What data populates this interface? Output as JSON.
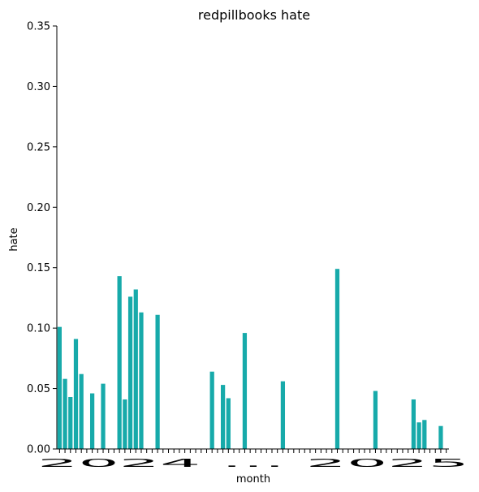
{
  "chart_data": {
    "type": "bar",
    "title": "redpillbooks hate",
    "xlabel": "month",
    "ylabel": "hate",
    "ylim": [
      0,
      0.35
    ],
    "yticks": [
      "0.00",
      "0.05",
      "0.10",
      "0.15",
      "0.20",
      "0.25",
      "0.30",
      "0.35"
    ],
    "x_tick_label_overlap": "2024 … 2025",
    "bar_color": "#17aaaa",
    "grid": false,
    "values": [
      0.101,
      0.058,
      0.043,
      0.091,
      0.062,
      0,
      0.046,
      0,
      0.054,
      0,
      0,
      0.143,
      0.041,
      0.126,
      0.132,
      0.113,
      0,
      0,
      0.111,
      0,
      0,
      0,
      0,
      0,
      0,
      0,
      0,
      0,
      0.064,
      0,
      0.053,
      0.042,
      0,
      0,
      0.096,
      0,
      0,
      0,
      0,
      0,
      0,
      0.056,
      0,
      0,
      0,
      0,
      0,
      0,
      0,
      0,
      0,
      0.149,
      0,
      0,
      0,
      0,
      0,
      0,
      0.048,
      0,
      0,
      0,
      0,
      0,
      0,
      0.041,
      0.022,
      0.024,
      0,
      0,
      0.019,
      0
    ]
  }
}
